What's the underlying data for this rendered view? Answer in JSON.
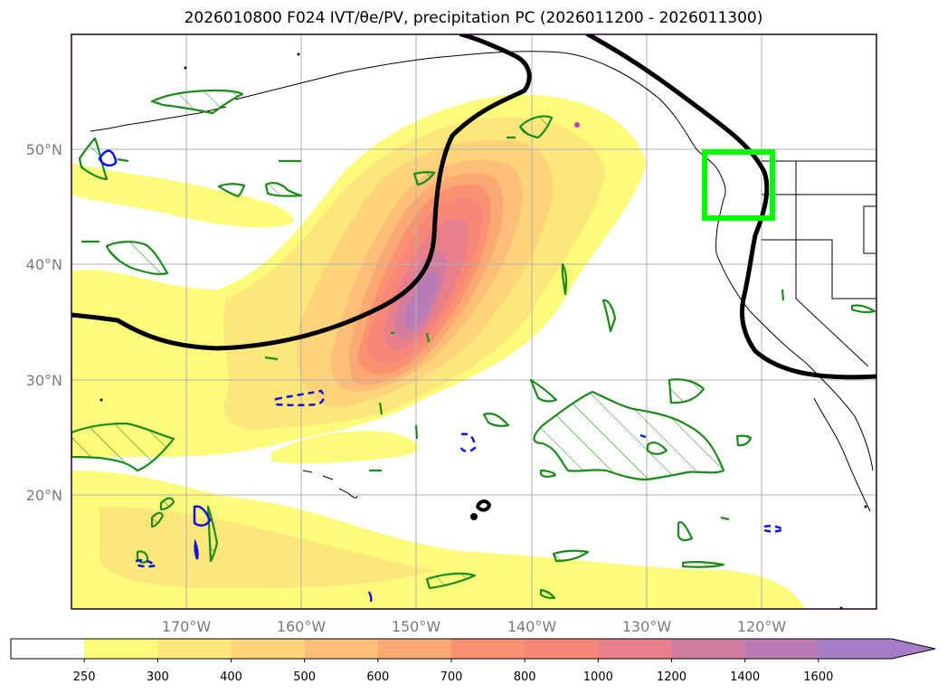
{
  "figure": {
    "title": "2026010800 F024 IVT/θe/PV, precipitation PC (2026011200 - 2026011300)"
  },
  "map": {
    "lat_ticks": [
      "50°N",
      "40°N",
      "30°N",
      "20°N"
    ],
    "lon_ticks": [
      "170°W",
      "160°W",
      "150°W",
      "140°W",
      "130°W",
      "120°W"
    ],
    "highlight_box_color": "#00ff00",
    "ivt_colors": [
      "#ffffff",
      "#fefb7a",
      "#fee77a",
      "#fed47a",
      "#fdbf77",
      "#fca873",
      "#fa9170",
      "#f78877",
      "#e97f8b",
      "#d07da0",
      "#b97cb6",
      "#a67cc6"
    ]
  },
  "colorbar": {
    "ticks": [
      "250",
      "300",
      "400",
      "500",
      "600",
      "700",
      "800",
      "1000",
      "1200",
      "1400",
      "1600"
    ]
  },
  "chart_data": {
    "type": "heatmap",
    "title": "2026010800 F024 IVT/θe/PV, precipitation PC (2026011200 - 2026011300)",
    "x_axis": {
      "range": [
        -180,
        -110
      ],
      "ticks": [
        -170,
        -160,
        -150,
        -140,
        -130,
        -120
      ],
      "unit": "degrees longitude"
    },
    "y_axis": {
      "range": [
        10,
        60
      ],
      "ticks": [
        20,
        30,
        40,
        50
      ],
      "unit": "degrees latitude"
    },
    "colorbar_levels": [
      250,
      300,
      400,
      500,
      600,
      700,
      800,
      1000,
      1200,
      1400,
      1600
    ],
    "colorbar_extend": "max",
    "highlight_box": {
      "lon": [
        -125,
        -121
      ],
      "lat": [
        44,
        50
      ]
    }
  }
}
